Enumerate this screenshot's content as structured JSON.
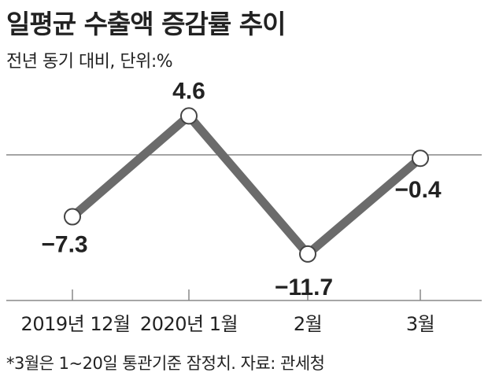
{
  "header": {
    "title": "일평균 수출액 증감률 추이",
    "subtitle": "전년 동기 대비, 단위:%"
  },
  "footnote": "*3월은 1~20일 통관기준 잠정치. 자료: 관세청",
  "colors": {
    "line": "#6b6b6b",
    "axis": "#888888",
    "marker_fill": "#ffffff",
    "text": "#222222"
  },
  "chart_data": {
    "type": "line",
    "title": "일평균 수출액 증감률 추이",
    "subtitle": "전년 동기 대비, 단위:%",
    "categories": [
      "2019년 12월",
      "2020년 1월",
      "2월",
      "3월"
    ],
    "series": [
      {
        "values": [
          -7.3,
          4.6,
          -11.7,
          -0.4
        ],
        "labels": [
          "−7.3",
          "4.6",
          "−11.7",
          "−0.4"
        ]
      }
    ],
    "ylim": [
      -17,
      9
    ],
    "baseline": 0,
    "grid": false,
    "legend": "none"
  }
}
